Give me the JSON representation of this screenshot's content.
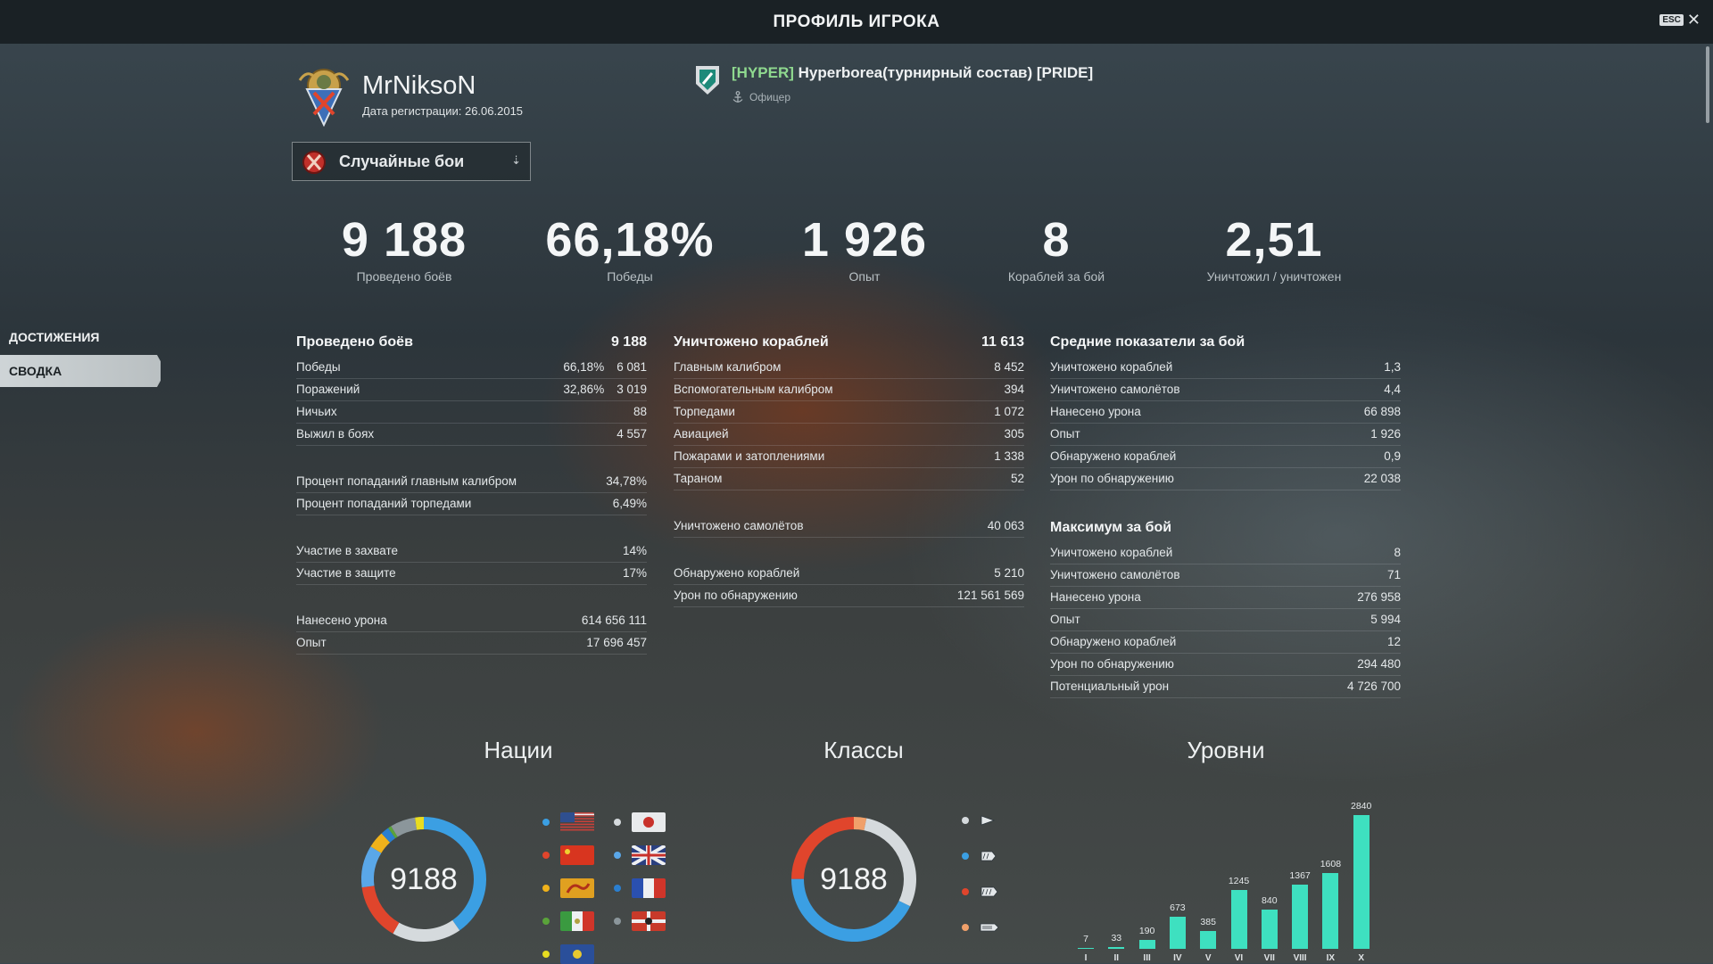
{
  "window": {
    "title": "ПРОФИЛЬ ИГРОКА",
    "esc_label": "ESC",
    "close_glyph": "✕"
  },
  "nav": {
    "items": [
      {
        "label": "ДОСТИЖЕНИЯ"
      },
      {
        "label": "СВОДКА"
      }
    ],
    "active_index": 1
  },
  "player": {
    "name": "MrNiksoN",
    "registration": "Дата регистрации: 26.06.2015"
  },
  "clan": {
    "tag": "[HYPER]",
    "name": "Hyperborea(турнирный состав) [PRIDE]",
    "role": "Офицер"
  },
  "mode": {
    "label": "Случайные бои"
  },
  "summary": [
    {
      "value": "9 188",
      "label": "Проведено боёв"
    },
    {
      "value": "66,18%",
      "label": "Победы"
    },
    {
      "value": "1 926",
      "label": "Опыт"
    },
    {
      "value": "8",
      "label": "Кораблей за бой"
    },
    {
      "value": "2,51",
      "label": "Уничтожил / уничтожен"
    }
  ],
  "battles": {
    "title": "Проведено боёв",
    "total": "9 188",
    "rows1": [
      {
        "label": "Победы",
        "pct": "66,18%",
        "value": "6 081"
      },
      {
        "label": "Поражений",
        "pct": "32,86%",
        "value": "3 019"
      },
      {
        "label": "Ничьих",
        "pct": "",
        "value": "88"
      },
      {
        "label": "Выжил в боях",
        "pct": "",
        "value": "4 557"
      }
    ],
    "rows2": [
      {
        "label": "Процент попаданий главным калибром",
        "value": "34,78%"
      },
      {
        "label": "Процент попаданий торпедами",
        "value": "6,49%"
      }
    ],
    "rows3": [
      {
        "label": "Участие в захвате",
        "value": "14%"
      },
      {
        "label": "Участие в защите",
        "value": "17%"
      }
    ],
    "rows4": [
      {
        "label": "Нанесено урона",
        "value": "614 656 111"
      },
      {
        "label": "Опыт",
        "value": "17 696 457"
      }
    ]
  },
  "destroyed": {
    "title": "Уничтожено кораблей",
    "total": "11 613",
    "rows1": [
      {
        "label": "Главным калибром",
        "value": "8 452"
      },
      {
        "label": "Вспомогательным калибром",
        "value": "394"
      },
      {
        "label": "Торпедами",
        "value": "1 072"
      },
      {
        "label": "Авиацией",
        "value": "305"
      },
      {
        "label": "Пожарами и затоплениями",
        "value": "1 338"
      },
      {
        "label": "Тараном",
        "value": "52"
      }
    ],
    "rows2": [
      {
        "label": "Уничтожено самолётов",
        "value": "40 063"
      }
    ],
    "rows3": [
      {
        "label": "Обнаружено кораблей",
        "value": "5 210"
      },
      {
        "label": "Урон по обнаружению",
        "value": "121 561 569"
      }
    ]
  },
  "averages": {
    "title": "Средние показатели за бой",
    "rows": [
      {
        "label": "Уничтожено кораблей",
        "value": "1,3"
      },
      {
        "label": "Уничтожено самолётов",
        "value": "4,4"
      },
      {
        "label": "Нанесено урона",
        "value": "66 898"
      },
      {
        "label": "Опыт",
        "value": "1 926"
      },
      {
        "label": "Обнаружено кораблей",
        "value": "0,9"
      },
      {
        "label": "Урон по обнаружению",
        "value": "22 038"
      }
    ]
  },
  "maximum": {
    "title": "Максимум за бой",
    "rows": [
      {
        "label": "Уничтожено кораблей",
        "value": "8"
      },
      {
        "label": "Уничтожено самолётов",
        "value": "71"
      },
      {
        "label": "Нанесено урона",
        "value": "276 958"
      },
      {
        "label": "Опыт",
        "value": "5 994"
      },
      {
        "label": "Обнаружено кораблей",
        "value": "12"
      },
      {
        "label": "Урон по обнаружению",
        "value": "294 480"
      },
      {
        "label": "Потенциальный урон",
        "value": "4 726 700"
      }
    ]
  },
  "charts": {
    "nations_title": "Нации",
    "classes_title": "Классы",
    "tiers_title": "Уровни",
    "nations_total": "9188",
    "classes_total": "9188"
  },
  "chart_data": [
    {
      "type": "pie",
      "title": "Нации",
      "categories": [
        "USA",
        "Japan",
        "China",
        "UK",
        "Pan-Asia",
        "France",
        "Italy",
        "Germany",
        "Commonwealth"
      ],
      "values": [
        3700,
        1650,
        1350,
        1000,
        400,
        200,
        80,
        600,
        208
      ],
      "colors": [
        "#3b9fe3",
        "#d5dadd",
        "#e0452c",
        "#5aa7e8",
        "#f0b21b",
        "#2a7fd0",
        "#5aa33a",
        "#8b969b",
        "#e8dc20"
      ],
      "icons": [
        "flag-usa-icon",
        "flag-japan-icon",
        "flag-china-icon",
        "flag-uk-icon",
        "flag-panasia-icon",
        "flag-france-icon",
        "flag-italy-icon",
        "flag-germany-icon",
        "flag-commonwealth-icon"
      ]
    },
    {
      "type": "pie",
      "title": "Классы",
      "categories": [
        "Авианосцы",
        "Эсминцы",
        "Крейсера",
        "Линкоры"
      ],
      "values": [
        300,
        2650,
        3950,
        2288
      ],
      "colors": [
        "#f0a06a",
        "#d5dadd",
        "#3b9fe3",
        "#e0452c"
      ],
      "icons": [
        "carrier-icon",
        "destroyer-icon",
        "cruiser-icon",
        "battleship-icon"
      ],
      "legend_order": [
        1,
        2,
        3,
        0
      ]
    },
    {
      "type": "bar",
      "title": "Уровни",
      "categories": [
        "I",
        "II",
        "III",
        "IV",
        "V",
        "VI",
        "VII",
        "VIII",
        "IX",
        "X"
      ],
      "values": [
        7,
        33,
        190,
        673,
        385,
        1245,
        840,
        1367,
        1608,
        2840
      ],
      "ylim": [
        0,
        2840
      ],
      "color": "#3ee0c0"
    }
  ]
}
